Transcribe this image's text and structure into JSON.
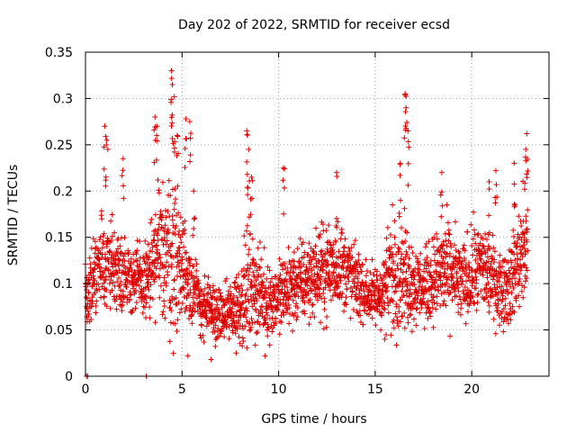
{
  "chart_data": {
    "type": "scatter",
    "title": "Day 202 of 2022, SRMTID for receiver ecsd",
    "xlabel": "GPS time / hours",
    "ylabel": "SRMTID / TECUs",
    "xlim": [
      0,
      24
    ],
    "ylim": [
      0,
      0.35
    ],
    "xticks": [
      0,
      5,
      10,
      15,
      20
    ],
    "yticks": [
      0,
      0.05,
      0.1,
      0.15,
      0.2,
      0.25,
      0.3,
      0.35
    ],
    "ytick_labels": [
      "0",
      "0.05",
      "0.1",
      "0.15",
      "0.2",
      "0.25",
      "0.3",
      "0.35"
    ],
    "grid": true,
    "marker": "+",
    "colors": {
      "series": "#dd0000",
      "axis": "#000000",
      "grid": "#a0a0a0"
    },
    "series": [
      {
        "name": "SRMTID",
        "x_start": 0.0,
        "x_step": 0.0089,
        "profile_hours": [
          0,
          0.5,
          1,
          1.5,
          2,
          2.5,
          3,
          3.5,
          4,
          4.5,
          5,
          5.5,
          6,
          6.5,
          7,
          7.5,
          8,
          8.5,
          9,
          9.5,
          10,
          10.5,
          11,
          11.5,
          12,
          12.5,
          13,
          13.5,
          14,
          14.5,
          15,
          15.5,
          16,
          16.5,
          17,
          17.5,
          18,
          18.5,
          19,
          19.5,
          20,
          20.5,
          21,
          21.5,
          22,
          22.5,
          22.9
        ],
        "profile_center": [
          0.09,
          0.11,
          0.125,
          0.12,
          0.11,
          0.105,
          0.1,
          0.115,
          0.14,
          0.13,
          0.12,
          0.1,
          0.075,
          0.07,
          0.065,
          0.07,
          0.08,
          0.1,
          0.09,
          0.08,
          0.085,
          0.095,
          0.1,
          0.105,
          0.11,
          0.115,
          0.12,
          0.115,
          0.1,
          0.09,
          0.085,
          0.095,
          0.12,
          0.11,
          0.1,
          0.095,
          0.105,
          0.115,
          0.11,
          0.1,
          0.11,
          0.12,
          0.105,
          0.095,
          0.1,
          0.13,
          0.14
        ],
        "profile_spread": [
          0.03,
          0.045,
          0.05,
          0.04,
          0.035,
          0.035,
          0.035,
          0.05,
          0.07,
          0.08,
          0.055,
          0.04,
          0.03,
          0.028,
          0.025,
          0.03,
          0.04,
          0.06,
          0.04,
          0.035,
          0.035,
          0.04,
          0.04,
          0.04,
          0.04,
          0.045,
          0.045,
          0.04,
          0.035,
          0.03,
          0.03,
          0.04,
          0.065,
          0.05,
          0.04,
          0.035,
          0.04,
          0.05,
          0.045,
          0.04,
          0.045,
          0.045,
          0.04,
          0.035,
          0.04,
          0.05,
          0.06
        ],
        "peaks": [
          {
            "x": 1.0,
            "y": 0.27
          },
          {
            "x": 1.1,
            "y": 0.255
          },
          {
            "x": 1.95,
            "y": 0.235
          },
          {
            "x": 3.6,
            "y": 0.28
          },
          {
            "x": 3.7,
            "y": 0.27
          },
          {
            "x": 4.45,
            "y": 0.33
          },
          {
            "x": 4.5,
            "y": 0.315
          },
          {
            "x": 4.6,
            "y": 0.302
          },
          {
            "x": 4.75,
            "y": 0.26
          },
          {
            "x": 5.2,
            "y": 0.278
          },
          {
            "x": 5.4,
            "y": 0.275
          },
          {
            "x": 5.6,
            "y": 0.2
          },
          {
            "x": 8.35,
            "y": 0.265
          },
          {
            "x": 8.45,
            "y": 0.245
          },
          {
            "x": 8.6,
            "y": 0.215
          },
          {
            "x": 10.25,
            "y": 0.225
          },
          {
            "x": 13.0,
            "y": 0.22
          },
          {
            "x": 16.55,
            "y": 0.305
          },
          {
            "x": 16.6,
            "y": 0.29
          },
          {
            "x": 16.7,
            "y": 0.265
          },
          {
            "x": 16.3,
            "y": 0.23
          },
          {
            "x": 18.45,
            "y": 0.22
          },
          {
            "x": 20.9,
            "y": 0.21
          },
          {
            "x": 21.25,
            "y": 0.222
          },
          {
            "x": 22.2,
            "y": 0.23
          },
          {
            "x": 22.85,
            "y": 0.262
          },
          {
            "x": 22.8,
            "y": 0.245
          }
        ],
        "extra_points": [
          {
            "x": 0.05,
            "y": 0.0
          },
          {
            "x": 0.12,
            "y": 0.0
          },
          {
            "x": 3.15,
            "y": 0.0
          },
          {
            "x": 5.3,
            "y": 0.022
          },
          {
            "x": 6.5,
            "y": 0.018
          },
          {
            "x": 7.8,
            "y": 0.025
          },
          {
            "x": 9.3,
            "y": 0.022
          },
          {
            "x": 15.5,
            "y": 0.04
          }
        ]
      }
    ]
  }
}
